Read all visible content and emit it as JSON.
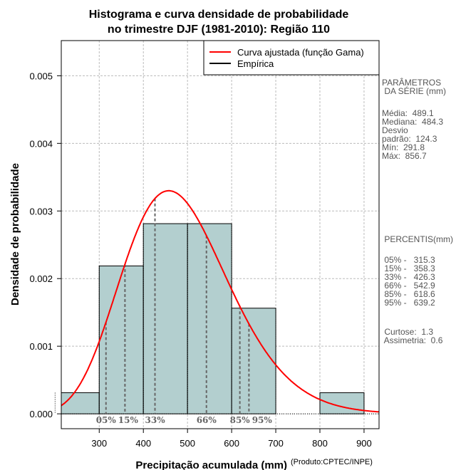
{
  "chart_data": {
    "type": "bar",
    "title": "Histograma e curva densidade de probabilidade",
    "subtitle": "no trimestre DJF (1981-2010): Região 110",
    "xlabel": "Precipitação acumulada (mm)",
    "credit": "(Produto:CPTEC/INPE)",
    "ylabel": "Densidade de probabilidade",
    "xlim": [
      214,
      934
    ],
    "ylim": [
      -0.00022,
      0.00552
    ],
    "xticks": [
      300,
      400,
      500,
      600,
      700,
      800,
      900
    ],
    "yticks": [
      0,
      0.001,
      0.002,
      0.003,
      0.004,
      0.005
    ],
    "ytick_labels": [
      "0.000",
      "0.001",
      "0.002",
      "0.003",
      "0.004",
      "0.005"
    ],
    "bins": [
      {
        "from": 200,
        "to": 300,
        "density": 0.0003125
      },
      {
        "from": 300,
        "to": 400,
        "density": 0.0021875
      },
      {
        "from": 400,
        "to": 500,
        "density": 0.0028125
      },
      {
        "from": 500,
        "to": 600,
        "density": 0.0028125
      },
      {
        "from": 600,
        "to": 700,
        "density": 0.0015625
      },
      {
        "from": 700,
        "to": 800,
        "density": 0
      },
      {
        "from": 800,
        "to": 900,
        "density": 0.0003125
      }
    ],
    "fit": {
      "distribution": "gamma",
      "mean": 489.1,
      "sd": 124.3
    },
    "percentile_lines": [
      {
        "label": "05%",
        "value": 315.3
      },
      {
        "label": "15%",
        "value": 358.3
      },
      {
        "label": "33%",
        "value": 426.3
      },
      {
        "label": "66%",
        "value": 542.9
      },
      {
        "label": "85%",
        "value": 618.6
      },
      {
        "label": "95%",
        "value": 639.2
      }
    ],
    "legend": {
      "placement": "top-right",
      "entries": [
        {
          "label": "Curva ajustada (função Gama)",
          "color": "#ff0000"
        },
        {
          "label": "Empírica",
          "color": "#000000"
        }
      ]
    },
    "colors": {
      "bar": "#b3cfcf",
      "curve": "#ff0000",
      "pct": "#666666"
    },
    "grid": true
  },
  "side": {
    "params_title": "PARÂMETROS\n DA SÉRIE (mm)",
    "params": "Média:  489.1\nMediana:  484.3\nDesvio\npadrão:  124.3\nMín:  291.8\nMáx:  856.7",
    "pct_title": " PERCENTIS(mm)",
    "pcts": " 05% -   315.3\n 15% -   358.3\n 33% -   426.3\n 66% -   542.9\n 85% -   618.6\n 95% -   639.2",
    "stats": " Curtose:  1.3\n Assimetria:  0.6"
  }
}
